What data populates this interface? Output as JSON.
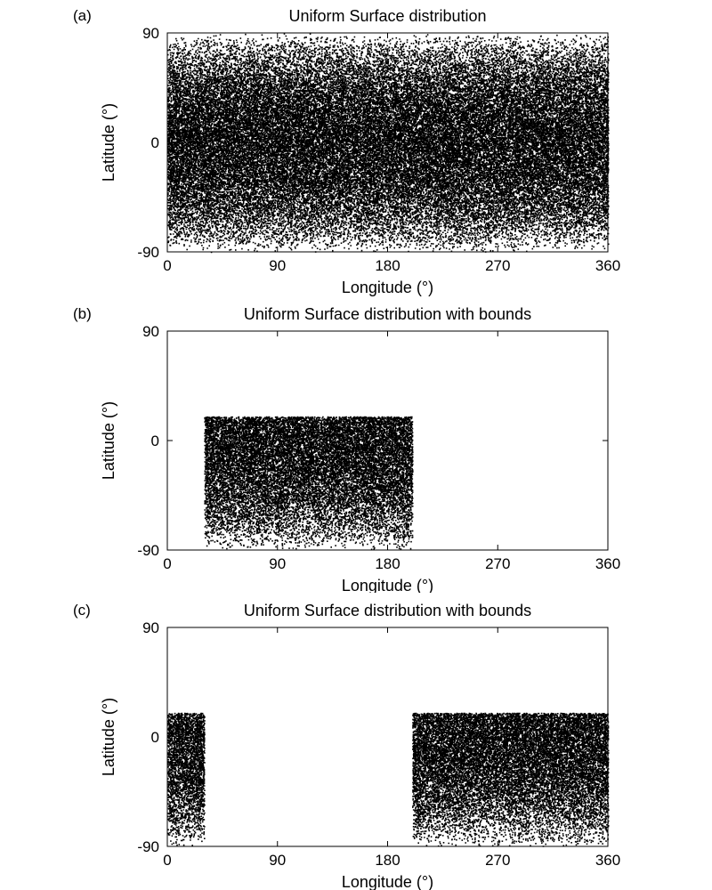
{
  "chart_data": [
    {
      "panel_label": "(a)",
      "type": "scatter",
      "title": "Uniform Surface distribution",
      "xlabel": "Longitude (°)",
      "ylabel": "Latitude (°)",
      "xlim": [
        0,
        360
      ],
      "ylim": [
        -90,
        90
      ],
      "xticks": [
        "0",
        "90",
        "180",
        "270",
        "360"
      ],
      "yticks": [
        "-90",
        "0",
        "90"
      ],
      "point_color": "#000000",
      "regions": [
        {
          "lon": [
            0,
            360
          ],
          "lat": [
            -90,
            90
          ]
        }
      ]
    },
    {
      "panel_label": "(b)",
      "type": "scatter",
      "title": "Uniform Surface distribution with bounds",
      "xlabel": "Longitude (°)",
      "ylabel": "Latitude (°)",
      "xlim": [
        0,
        360
      ],
      "ylim": [
        -90,
        90
      ],
      "xticks": [
        "0",
        "90",
        "180",
        "270",
        "360"
      ],
      "yticks": [
        "-90",
        "0",
        "90"
      ],
      "point_color": "#000000",
      "regions": [
        {
          "lon": [
            30,
            200
          ],
          "lat": [
            -90,
            20
          ]
        }
      ]
    },
    {
      "panel_label": "(c)",
      "type": "scatter",
      "title": "Uniform Surface distribution with bounds",
      "xlabel": "Longitude (°)",
      "ylabel": "Latitude (°)",
      "xlim": [
        0,
        360
      ],
      "ylim": [
        -90,
        90
      ],
      "xticks": [
        "0",
        "90",
        "180",
        "270",
        "360"
      ],
      "yticks": [
        "-90",
        "0",
        "90"
      ],
      "point_color": "#000000",
      "regions": [
        {
          "lon": [
            0,
            30
          ],
          "lat": [
            -90,
            20
          ]
        },
        {
          "lon": [
            200,
            360
          ],
          "lat": [
            -90,
            20
          ]
        }
      ]
    }
  ]
}
